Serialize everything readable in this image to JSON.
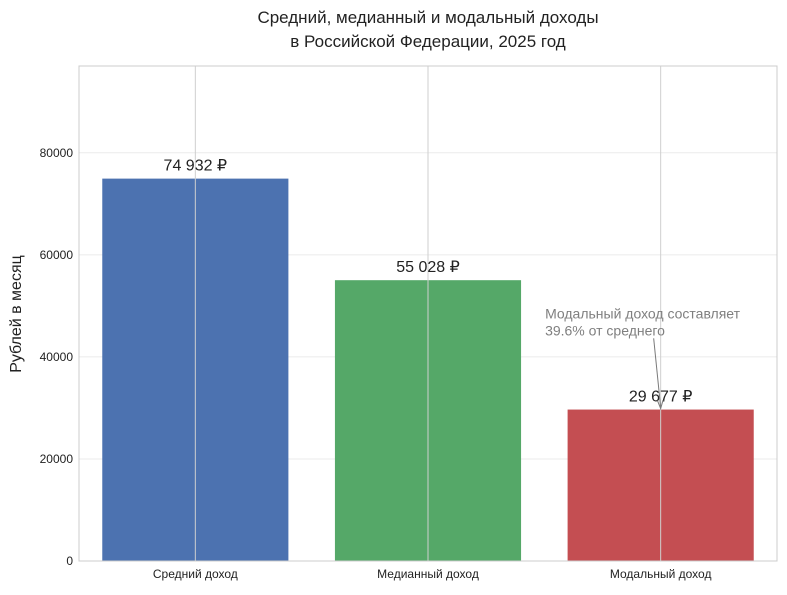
{
  "chart_data": {
    "type": "bar",
    "title_lines": [
      "Средний, медианный и модальный доходы",
      "в Российской Федерации, 2025 год"
    ],
    "xlabel": "",
    "ylabel": "Рублей в месяц",
    "categories": [
      "Средний доход",
      "Медианный доход",
      "Модальный доход"
    ],
    "values": [
      74932,
      55028,
      29677
    ],
    "value_labels": [
      "74 932 ₽",
      "55 028 ₽",
      "29 677 ₽"
    ],
    "bar_colors": [
      "#4c72b0",
      "#55a868",
      "#c44e52"
    ],
    "ylim": [
      0,
      97000
    ],
    "yticks": [
      0,
      20000,
      40000,
      60000,
      80000
    ],
    "ytick_labels": [
      "0",
      "20000",
      "40000",
      "60000",
      "80000"
    ],
    "grid": true,
    "annotation": {
      "lines": [
        "Модальный доход составляет",
        "39.6% от среднего"
      ],
      "target_category": "Модальный доход",
      "target_value": 29677,
      "text_value": 45000
    }
  }
}
